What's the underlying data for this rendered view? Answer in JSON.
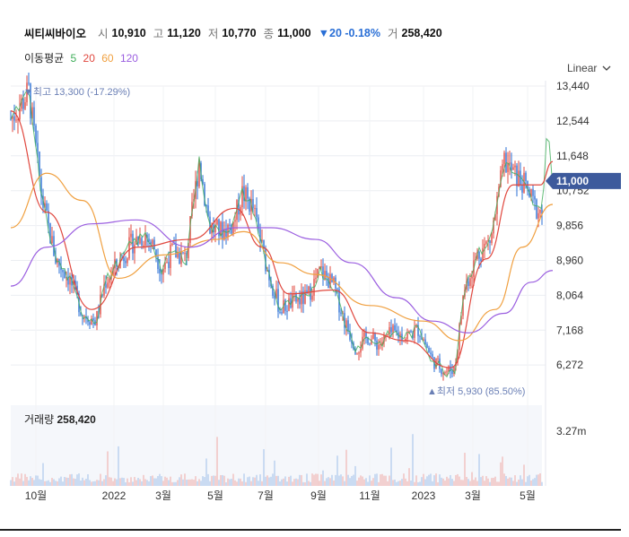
{
  "header": {
    "name": "씨티씨바이오",
    "open_label": "시",
    "open": "10,910",
    "high_label": "고",
    "high": "11,120",
    "low_label": "저",
    "low": "10,770",
    "close_label": "종",
    "close": "11,000",
    "change": "▼20 -0.18%",
    "volume_label": "거",
    "volume": "258,420"
  },
  "moving_average": {
    "label": "이동평균",
    "periods": [
      {
        "value": "5",
        "color": "#3fae5a"
      },
      {
        "value": "20",
        "color": "#e0483f"
      },
      {
        "value": "60",
        "color": "#f0a040"
      },
      {
        "value": "120",
        "color": "#9b5fe0"
      }
    ]
  },
  "scale_selector": {
    "label": "Linear"
  },
  "volume_panel": {
    "label": "거래량",
    "value": "258,420",
    "tick": "3.27m"
  },
  "colors": {
    "up": "#e0483f",
    "down": "#2a6fd6",
    "grid": "#eceef2",
    "badge": "#3d5a9c",
    "annotation": "#6a7fb5"
  },
  "chart_data": {
    "type": "candlestick",
    "y_axis": {
      "ticks": [
        "13,440",
        "12,544",
        "11,648",
        "10,752",
        "9,856",
        "8,960",
        "8,064",
        "7,168",
        "6,272"
      ],
      "ylim": [
        5700,
        13440
      ]
    },
    "x_axis": {
      "ticks": [
        "10월",
        "2022",
        "3월",
        "5월",
        "7월",
        "9월",
        "11월",
        "2023",
        "3월",
        "5월"
      ]
    },
    "last_price": "11,000",
    "high_annotation": "최고 13,300 (-17.29%)",
    "low_annotation": "최저 5,930 (85.50%)",
    "price_path": [
      [
        0,
        12600
      ],
      [
        10,
        12900
      ],
      [
        20,
        13300
      ],
      [
        35,
        10500
      ],
      [
        50,
        9000
      ],
      [
        65,
        8500
      ],
      [
        80,
        7600
      ],
      [
        95,
        7400
      ],
      [
        105,
        8400
      ],
      [
        120,
        8900
      ],
      [
        135,
        9400
      ],
      [
        150,
        9600
      ],
      [
        160,
        9300
      ],
      [
        168,
        8700
      ],
      [
        180,
        9200
      ],
      [
        195,
        9000
      ],
      [
        210,
        11500
      ],
      [
        222,
        9800
      ],
      [
        235,
        9700
      ],
      [
        248,
        9900
      ],
      [
        258,
        10700
      ],
      [
        270,
        10300
      ],
      [
        285,
        8800
      ],
      [
        300,
        7700
      ],
      [
        315,
        7900
      ],
      [
        330,
        8000
      ],
      [
        345,
        8700
      ],
      [
        360,
        8300
      ],
      [
        372,
        7400
      ],
      [
        385,
        6700
      ],
      [
        398,
        7000
      ],
      [
        410,
        6800
      ],
      [
        425,
        7100
      ],
      [
        440,
        7000
      ],
      [
        455,
        7200
      ],
      [
        470,
        6400
      ],
      [
        485,
        6100
      ],
      [
        495,
        6200
      ],
      [
        505,
        8200
      ],
      [
        520,
        9100
      ],
      [
        535,
        9500
      ],
      [
        550,
        11500
      ],
      [
        560,
        11200
      ],
      [
        572,
        10900
      ],
      [
        585,
        10300
      ],
      [
        592,
        10200
      ],
      [
        598,
        12500
      ],
      [
        604,
        11000
      ]
    ],
    "ma_series": [
      {
        "period": 20,
        "points": [
          [
            0,
            12800
          ],
          [
            40,
            10200
          ],
          [
            90,
            7700
          ],
          [
            140,
            9300
          ],
          [
            200,
            9500
          ],
          [
            250,
            10300
          ],
          [
            280,
            9300
          ],
          [
            310,
            8100
          ],
          [
            360,
            8200
          ],
          [
            400,
            7100
          ],
          [
            440,
            6900
          ],
          [
            490,
            6200
          ],
          [
            530,
            9000
          ],
          [
            560,
            10900
          ],
          [
            590,
            10900
          ],
          [
            604,
            11500
          ]
        ]
      },
      {
        "period": 60,
        "points": [
          [
            0,
            9800
          ],
          [
            40,
            11200
          ],
          [
            80,
            10500
          ],
          [
            120,
            8500
          ],
          [
            170,
            9100
          ],
          [
            230,
            9500
          ],
          [
            260,
            9700
          ],
          [
            300,
            8900
          ],
          [
            340,
            8600
          ],
          [
            400,
            7800
          ],
          [
            460,
            7400
          ],
          [
            500,
            6900
          ],
          [
            540,
            7700
          ],
          [
            570,
            9300
          ],
          [
            604,
            10400
          ]
        ]
      },
      {
        "period": 120,
        "points": [
          [
            0,
            8300
          ],
          [
            40,
            9300
          ],
          [
            90,
            9900
          ],
          [
            140,
            10000
          ],
          [
            200,
            9300
          ],
          [
            250,
            9800
          ],
          [
            290,
            9800
          ],
          [
            340,
            9500
          ],
          [
            380,
            8900
          ],
          [
            430,
            8000
          ],
          [
            470,
            7400
          ],
          [
            510,
            7100
          ],
          [
            550,
            7600
          ],
          [
            580,
            8400
          ],
          [
            604,
            8700
          ]
        ]
      }
    ],
    "volume_max_m": 3.27
  }
}
